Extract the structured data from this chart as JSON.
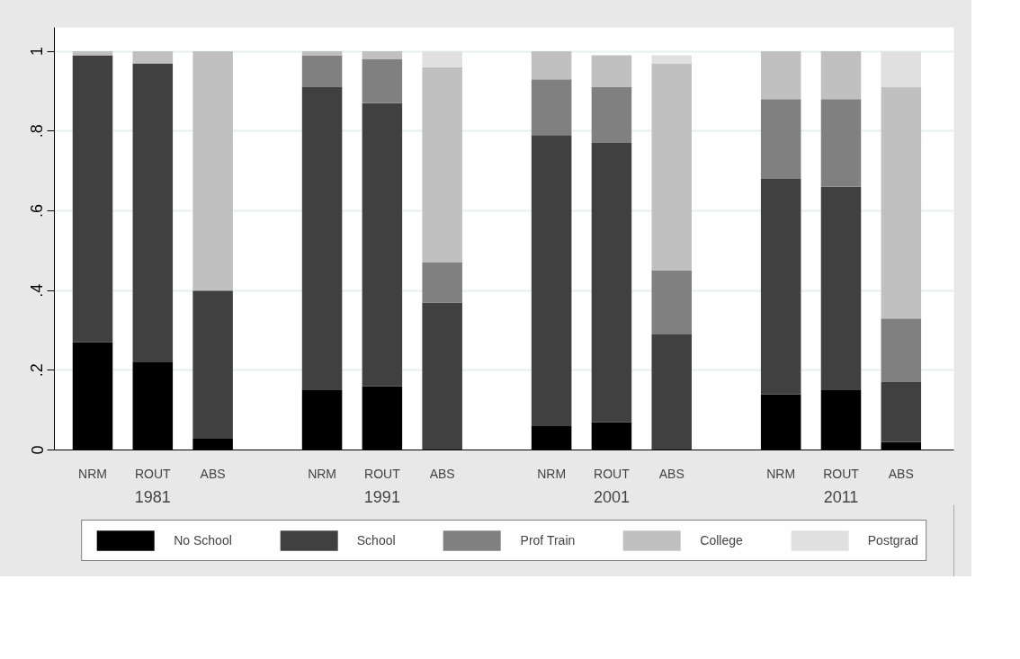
{
  "chart_data": {
    "type": "bar",
    "stacked": true,
    "categories": [
      "NRM",
      "ROUT",
      "ABS",
      "NRM",
      "ROUT",
      "ABS",
      "NRM",
      "ROUT",
      "ABS",
      "NRM",
      "ROUT",
      "ABS"
    ],
    "annotations": [
      "1981",
      "1991",
      "2001",
      "2011"
    ],
    "series": [
      {
        "name": "No School",
        "color": "#000000",
        "values": [
          0.27,
          0.22,
          0.03,
          0.15,
          0.16,
          0,
          0.06,
          0.07,
          0,
          0.14,
          0.15,
          0.02
        ]
      },
      {
        "name": "School",
        "color": "#404040",
        "values": [
          0.72,
          0.75,
          0.37,
          0.76,
          0.71,
          0.37,
          0.73,
          0.7,
          0.29,
          0.54,
          0.51,
          0.15
        ]
      },
      {
        "name": "Prof Train",
        "color": "#808080",
        "values": [
          0,
          0,
          0,
          0.08,
          0.11,
          0.1,
          0.14,
          0.14,
          0.16,
          0.2,
          0.22,
          0.16
        ]
      },
      {
        "name": "College",
        "color": "#c0c0c0",
        "values": [
          0.01,
          0.03,
          0.6,
          0.01,
          0.02,
          0.49,
          0.07,
          0.08,
          0.52,
          0.12,
          0.12,
          0.58
        ]
      },
      {
        "name": "Postgrad",
        "color": "#e0e0e0",
        "values": [
          0,
          0,
          0,
          0,
          0,
          0.04,
          0,
          0,
          0.02,
          0,
          0,
          0.09
        ]
      }
    ],
    "ylim": [
      0,
      1.06
    ],
    "yticks": [
      0,
      {
        "value": 0.2,
        "label": ".2"
      },
      {
        "value": 0.4,
        "label": ".4"
      },
      {
        "value": 0.6,
        "label": ".6"
      },
      {
        "value": 0.8,
        "label": ".8"
      },
      1
    ],
    "grid": "y",
    "legend": "bottom"
  }
}
